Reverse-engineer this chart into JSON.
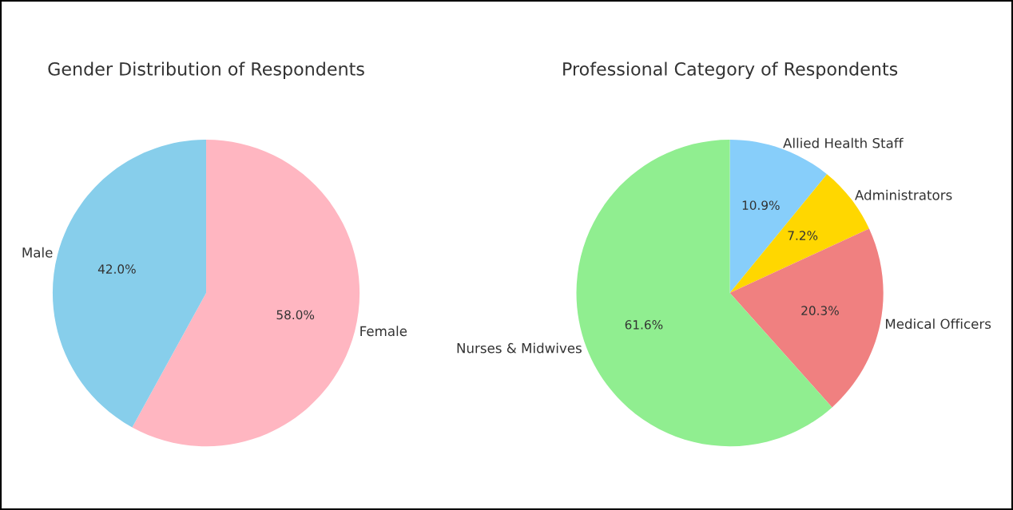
{
  "chart_data": [
    {
      "type": "pie",
      "title": "Gender Distribution of Respondents",
      "categories": [
        "Female",
        "Male"
      ],
      "values": [
        58.0,
        42.0
      ],
      "colors": [
        "#ffb6c1",
        "#87ceeb"
      ],
      "value_labels": [
        "58.0%",
        "42.0%"
      ]
    },
    {
      "type": "pie",
      "title": "Professional Category of Respondents",
      "categories": [
        "Allied Health Staff",
        "Administrators",
        "Medical Officers",
        "Nurses & Midwives"
      ],
      "values": [
        10.9,
        7.2,
        20.3,
        61.6
      ],
      "colors": [
        "#87cefa",
        "#ffd700",
        "#f08080",
        "#90ee90"
      ],
      "value_labels": [
        "10.9%",
        "7.2%",
        "20.3%",
        "61.6%"
      ]
    }
  ]
}
